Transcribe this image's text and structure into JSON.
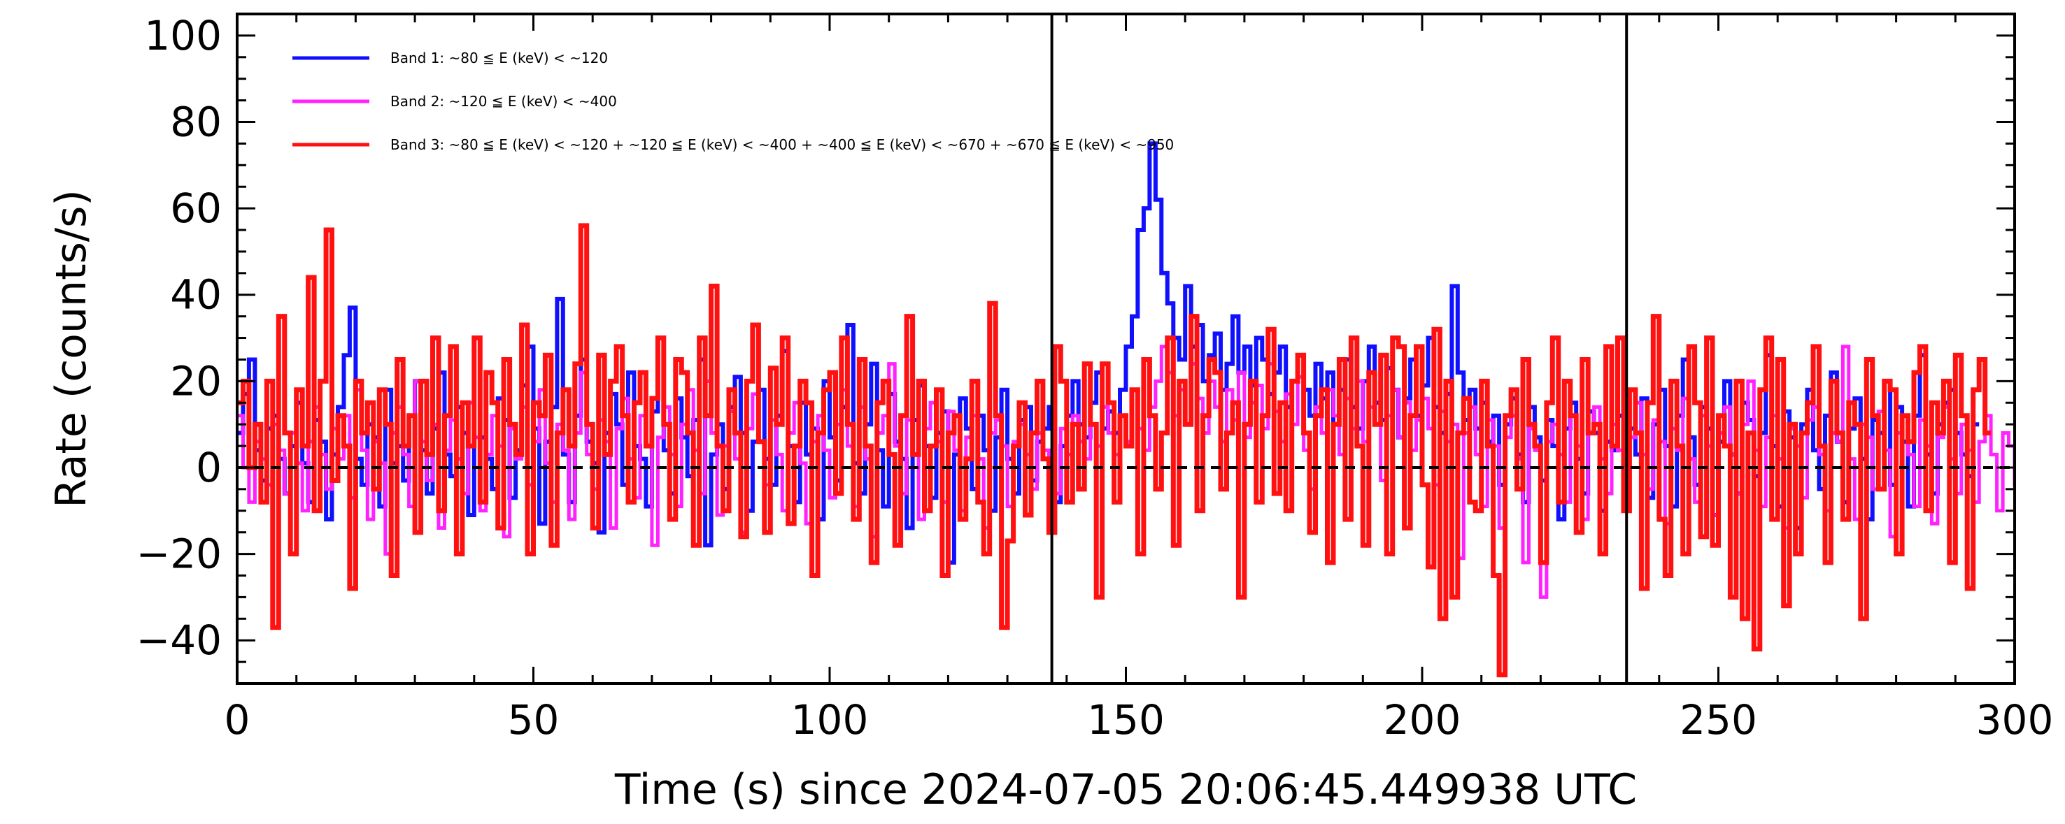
{
  "chart_data": {
    "type": "line",
    "title": "",
    "xlabel": "Time (s) since 2024-07-05 20:06:45.449938 UTC",
    "ylabel": "Rate (counts/s)",
    "xlim": [
      0,
      300
    ],
    "ylim": [
      -50,
      105
    ],
    "x_ticks": [
      0,
      50,
      100,
      150,
      200,
      250,
      300
    ],
    "y_ticks": [
      -40,
      -20,
      0,
      20,
      40,
      60,
      80,
      100
    ],
    "x_tick_labels": [
      "0",
      "50",
      "100",
      "150",
      "200",
      "250",
      "300"
    ],
    "y_tick_labels": [
      "−40",
      "−20",
      "0",
      "20",
      "40",
      "60",
      "80",
      "100"
    ],
    "step_seconds": 1,
    "vertical_lines": [
      137.5,
      234.5
    ],
    "zero_line": 0,
    "legend_position": "top-left",
    "series": [
      {
        "name": "Band 1: ~80 ≦ E (keV) < ~120",
        "color": "#1010ff",
        "values": [
          8,
          17,
          25,
          4,
          -3,
          9,
          12,
          2,
          -6,
          5,
          15,
          1,
          -8,
          11,
          6,
          -12,
          3,
          14,
          26,
          37,
          2,
          -4,
          10,
          7,
          -9,
          18,
          1,
          5,
          -3,
          12,
          20,
          4,
          -6,
          9,
          22,
          3,
          -2,
          14,
          8,
          -11,
          30,
          7,
          2,
          -5,
          16,
          11,
          -7,
          4,
          19,
          28,
          9,
          -13,
          6,
          14,
          39,
          3,
          -8,
          12,
          25,
          6,
          1,
          -15,
          8,
          17,
          10,
          -4,
          22,
          5,
          2,
          -9,
          13,
          30,
          4,
          -6,
          16,
          7,
          -2,
          11,
          25,
          -18,
          3,
          10,
          -5,
          14,
          21,
          8,
          -10,
          6,
          18,
          2,
          -4,
          12,
          27,
          5,
          -8,
          15,
          3,
          9,
          -12,
          20,
          7,
          -3,
          14,
          33,
          1,
          -6,
          10,
          24,
          4,
          -9,
          17,
          6,
          2,
          -14,
          11,
          19,
          5,
          -7,
          8,
          13,
          -22,
          3,
          16,
          9,
          -5,
          12,
          4,
          -10,
          7,
          18,
          2,
          -6,
          11,
          14,
          -3,
          6,
          9,
          14,
          -8,
          5,
          12,
          20,
          10,
          7,
          15,
          22,
          9,
          13,
          8,
          18,
          28,
          35,
          55,
          60,
          75,
          62,
          45,
          38,
          30,
          25,
          42,
          28,
          33,
          20,
          26,
          31,
          18,
          24,
          35,
          22,
          28,
          19,
          30,
          25,
          17,
          22,
          28,
          14,
          20,
          26,
          18,
          12,
          24,
          16,
          22,
          10,
          18,
          25,
          14,
          9,
          20,
          28,
          15,
          11,
          23,
          18,
          7,
          16,
          25,
          12,
          19,
          30,
          14,
          8,
          17,
          42,
          22,
          11,
          18,
          9,
          15,
          6,
          12,
          -4,
          10,
          16,
          3,
          -8,
          14,
          7,
          -3,
          11,
          5,
          -12,
          9,
          15,
          2,
          -6,
          13,
          8,
          -10,
          6,
          4,
          12,
          -5,
          9,
          3,
          16,
          -7,
          10,
          18,
          5,
          -9,
          12,
          25,
          7,
          -4,
          14,
          9,
          -11,
          6,
          20,
          3,
          -6,
          15,
          11,
          -2,
          8,
          26,
          5,
          -9,
          13,
          7,
          -14,
          10,
          18,
          4,
          -5,
          12,
          22,
          6,
          -8,
          9,
          16,
          2,
          -12,
          11,
          8,
          20,
          -4,
          14,
          6,
          -9,
          12,
          26,
          3,
          -6,
          10,
          15,
          18,
          8,
          3,
          -2,
          10
        ],
        "line_width": 6
      },
      {
        "name": "Band 2: ~120 ≦ E (keV) < ~400",
        "color": "#ff22ff",
        "values": [
          12,
          0,
          -8,
          6,
          2,
          -4,
          10,
          4,
          -6,
          8,
          1,
          -10,
          6,
          14,
          3,
          -5,
          9,
          2,
          12,
          -7,
          18,
          4,
          -12,
          6,
          1,
          -20,
          8,
          14,
          3,
          -9,
          20,
          6,
          -3,
          10,
          -14,
          4,
          11,
          2,
          -6,
          15,
          7,
          -10,
          3,
          12,
          5,
          -16,
          9,
          2,
          14,
          -4,
          6,
          18,
          1,
          -8,
          10,
          4,
          -12,
          8,
          22,
          3,
          -5,
          11,
          6,
          -14,
          9,
          16,
          2,
          -7,
          12,
          5,
          -18,
          7,
          14,
          3,
          -9,
          10,
          18,
          4,
          -6,
          20,
          8,
          -11,
          5,
          13,
          2,
          -15,
          9,
          17,
          6,
          -4,
          11,
          3,
          -10,
          8,
          15,
          1,
          -13,
          6,
          12,
          4,
          -7,
          10,
          18,
          5,
          -9,
          14,
          2,
          -16,
          8,
          12,
          24,
          5,
          -6,
          11,
          3,
          -12,
          9,
          15,
          6,
          -8,
          13,
          4,
          -10,
          7,
          12,
          2,
          -14,
          8,
          11,
          5,
          -9,
          6,
          10,
          3,
          -5,
          8,
          4,
          1,
          -6,
          9,
          3,
          12,
          6,
          2,
          10,
          5,
          14,
          8,
          3,
          12,
          6,
          18,
          9,
          4,
          14,
          20,
          28,
          22,
          12,
          18,
          10,
          24,
          16,
          8,
          20,
          14,
          6,
          18,
          11,
          22,
          7,
          15,
          19,
          9,
          24,
          13,
          6,
          17,
          10,
          21,
          4,
          -5,
          14,
          8,
          18,
          12,
          3,
          16,
          9,
          20,
          6,
          14,
          10,
          -3,
          12,
          18,
          7,
          15,
          4,
          11,
          16,
          9,
          -4,
          13,
          6,
          10,
          -21,
          8,
          14,
          3,
          -9,
          11,
          5,
          -14,
          7,
          12,
          2,
          -22,
          9,
          4,
          -30,
          6,
          10,
          3,
          -8,
          12,
          5,
          -12,
          8,
          14,
          2,
          -6,
          10,
          4,
          -10,
          7,
          15,
          3,
          -5,
          11,
          6,
          -13,
          9,
          4,
          16,
          2,
          -8,
          12,
          5,
          -11,
          8,
          14,
          3,
          -6,
          10,
          20,
          4,
          -9,
          7,
          12,
          2,
          -14,
          9,
          5,
          -7,
          11,
          14,
          3,
          -10,
          8,
          6,
          28,
          2,
          -12,
          10,
          7,
          -5,
          13,
          4,
          -16,
          8,
          12,
          3,
          -9,
          11,
          5,
          -13,
          7,
          14,
          2,
          -6,
          10,
          4,
          -8,
          6,
          12,
          3,
          -10,
          8,
          5,
          -4,
          9
        ],
        "line_width": 5
      },
      {
        "name": "Band 3: ~80 ≦ E (keV) < ~120 + ~120 ≦ E (keV) < ~400 + ~400 ≦ E (keV) < ~670 + ~670 ≦ E (keV) < ~950",
        "color": "#ff1111",
        "values": [
          15,
          20,
          0,
          10,
          -8,
          20,
          -37,
          35,
          8,
          -20,
          18,
          5,
          44,
          -10,
          20,
          55,
          -3,
          12,
          5,
          -28,
          20,
          8,
          15,
          -5,
          18,
          10,
          -25,
          25,
          5,
          12,
          -15,
          20,
          3,
          30,
          -10,
          12,
          28,
          -20,
          15,
          5,
          30,
          -8,
          22,
          15,
          -14,
          25,
          10,
          3,
          33,
          -20,
          15,
          12,
          26,
          -18,
          8,
          18,
          5,
          24,
          56,
          10,
          -14,
          26,
          3,
          20,
          28,
          12,
          -8,
          15,
          22,
          5,
          16,
          30,
          10,
          -12,
          25,
          22,
          8,
          -18,
          30,
          12,
          42,
          5,
          -10,
          18,
          8,
          -16,
          20,
          33,
          6,
          -15,
          23,
          10,
          30,
          -13,
          5,
          20,
          15,
          -25,
          8,
          18,
          22,
          -6,
          30,
          10,
          -12,
          25,
          5,
          -22,
          15,
          20,
          3,
          -18,
          12,
          35,
          3,
          20,
          -10,
          5,
          18,
          -25,
          8,
          12,
          -12,
          2,
          20,
          -8,
          -20,
          38,
          12,
          -37,
          -17,
          5,
          15,
          -11,
          8,
          20,
          2,
          -15,
          28,
          20,
          -8,
          10,
          -5,
          24,
          10,
          -30,
          24,
          15,
          -8,
          12,
          5,
          18,
          -20,
          25,
          12,
          -5,
          8,
          30,
          -18,
          20,
          10,
          35,
          -10,
          12,
          25,
          22,
          -5,
          8,
          15,
          -30,
          10,
          20,
          -8,
          12,
          32,
          -6,
          15,
          -10,
          20,
          26,
          8,
          -15,
          12,
          18,
          -22,
          10,
          25,
          -12,
          30,
          5,
          -18,
          22,
          10,
          26,
          -20,
          30,
          28,
          -14,
          12,
          28,
          -4,
          -23,
          32,
          -35,
          20,
          -30,
          8,
          16,
          -8,
          -10,
          20,
          5,
          -25,
          -48,
          12,
          18,
          -5,
          25,
          10,
          5,
          -22,
          15,
          30,
          -8,
          20,
          12,
          -15,
          25,
          8,
          10,
          -20,
          28,
          5,
          30,
          -10,
          18,
          8,
          -28,
          15,
          35,
          -12,
          -25,
          20,
          5,
          -20,
          28,
          15,
          -16,
          30,
          -18,
          12,
          5,
          -30,
          20,
          -35,
          8,
          -42,
          18,
          30,
          -12,
          25,
          -32,
          10,
          -20,
          8,
          15,
          28,
          5,
          -22,
          20,
          8,
          -12,
          15,
          10,
          -35,
          25,
          12,
          -5,
          20,
          18,
          -20,
          12,
          6,
          22,
          28,
          -10,
          15,
          8,
          20,
          -22,
          26,
          12,
          -28,
          18,
          25,
          8
        ],
        "line_width": 7
      }
    ]
  }
}
